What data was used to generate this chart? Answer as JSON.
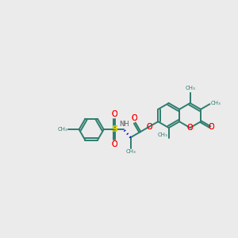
{
  "bg_color": "#ebebeb",
  "bond_color": "#2d7d6e",
  "red_color": "#ff0000",
  "blue_color": "#0000cd",
  "sulfur_color": "#cccc00",
  "gray_color": "#7a7a7a",
  "lw": 1.4,
  "b": 0.52,
  "fig_w": 3.0,
  "fig_h": 3.0,
  "dpi": 100,
  "xlim": [
    0,
    10
  ],
  "ylim": [
    0,
    10
  ]
}
